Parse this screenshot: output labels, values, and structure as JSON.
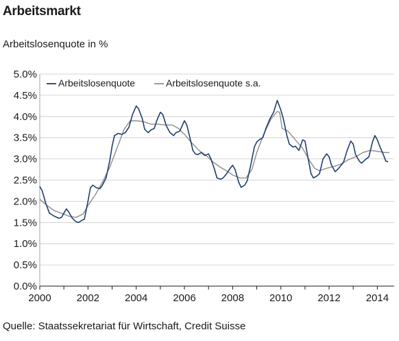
{
  "header": {
    "title": "Arbeitsmarkt",
    "subtitle": "Arbeitslosenquote in %"
  },
  "footer": {
    "source": "Quelle: Staatssekretariat für Wirtschaft, Credit Suisse"
  },
  "chart_data": {
    "type": "line",
    "title": "Arbeitsmarkt",
    "ylabel": "Arbeitslosenquote in %",
    "xlim": [
      2000,
      2014.7
    ],
    "ylim": [
      0,
      5
    ],
    "grid": true,
    "legend_position": "top-left",
    "yticks": [
      "0.0%",
      "0.5%",
      "1.0%",
      "1.5%",
      "2.0%",
      "2.5%",
      "3.0%",
      "3.5%",
      "4.0%",
      "4.5%",
      "5.0%"
    ],
    "xticks": [
      "2000",
      "2002",
      "2004",
      "2006",
      "2008",
      "2010",
      "2012",
      "2014"
    ],
    "series": [
      {
        "name": "Arbeitslosenquote",
        "color": "#1f3d6e",
        "points": [
          [
            2000.0,
            2.35
          ],
          [
            2000.1,
            2.25
          ],
          [
            2000.25,
            1.95
          ],
          [
            2000.4,
            1.72
          ],
          [
            2000.6,
            1.65
          ],
          [
            2000.8,
            1.6
          ],
          [
            2000.9,
            1.62
          ],
          [
            2001.0,
            1.72
          ],
          [
            2001.1,
            1.82
          ],
          [
            2001.2,
            1.75
          ],
          [
            2001.35,
            1.6
          ],
          [
            2001.5,
            1.52
          ],
          [
            2001.6,
            1.5
          ],
          [
            2001.75,
            1.55
          ],
          [
            2001.85,
            1.58
          ],
          [
            2002.0,
            2.0
          ],
          [
            2002.1,
            2.32
          ],
          [
            2002.2,
            2.38
          ],
          [
            2002.35,
            2.32
          ],
          [
            2002.5,
            2.3
          ],
          [
            2002.6,
            2.38
          ],
          [
            2002.75,
            2.55
          ],
          [
            2002.9,
            2.95
          ],
          [
            2003.0,
            3.3
          ],
          [
            2003.1,
            3.55
          ],
          [
            2003.25,
            3.6
          ],
          [
            2003.4,
            3.58
          ],
          [
            2003.55,
            3.62
          ],
          [
            2003.7,
            3.75
          ],
          [
            2003.85,
            4.05
          ],
          [
            2004.0,
            4.25
          ],
          [
            2004.1,
            4.18
          ],
          [
            2004.25,
            3.95
          ],
          [
            2004.35,
            3.7
          ],
          [
            2004.5,
            3.62
          ],
          [
            2004.6,
            3.68
          ],
          [
            2004.75,
            3.72
          ],
          [
            2004.85,
            3.9
          ],
          [
            2005.0,
            4.1
          ],
          [
            2005.1,
            4.05
          ],
          [
            2005.25,
            3.78
          ],
          [
            2005.4,
            3.62
          ],
          [
            2005.55,
            3.55
          ],
          [
            2005.65,
            3.62
          ],
          [
            2005.8,
            3.65
          ],
          [
            2006.0,
            3.9
          ],
          [
            2006.1,
            3.8
          ],
          [
            2006.25,
            3.45
          ],
          [
            2006.35,
            3.2
          ],
          [
            2006.45,
            3.12
          ],
          [
            2006.55,
            3.1
          ],
          [
            2006.7,
            3.15
          ],
          [
            2006.85,
            3.08
          ],
          [
            2007.0,
            3.12
          ],
          [
            2007.1,
            3.0
          ],
          [
            2007.25,
            2.75
          ],
          [
            2007.35,
            2.55
          ],
          [
            2007.5,
            2.52
          ],
          [
            2007.6,
            2.55
          ],
          [
            2007.75,
            2.65
          ],
          [
            2007.9,
            2.78
          ],
          [
            2008.0,
            2.85
          ],
          [
            2008.1,
            2.75
          ],
          [
            2008.25,
            2.45
          ],
          [
            2008.35,
            2.33
          ],
          [
            2008.5,
            2.38
          ],
          [
            2008.6,
            2.48
          ],
          [
            2008.75,
            2.85
          ],
          [
            2008.9,
            3.28
          ],
          [
            2009.0,
            3.4
          ],
          [
            2009.1,
            3.45
          ],
          [
            2009.25,
            3.5
          ],
          [
            2009.4,
            3.75
          ],
          [
            2009.55,
            3.95
          ],
          [
            2009.7,
            4.1
          ],
          [
            2009.85,
            4.38
          ],
          [
            2010.0,
            4.15
          ],
          [
            2010.1,
            3.95
          ],
          [
            2010.25,
            3.55
          ],
          [
            2010.35,
            3.35
          ],
          [
            2010.5,
            3.28
          ],
          [
            2010.6,
            3.3
          ],
          [
            2010.75,
            3.2
          ],
          [
            2010.9,
            3.45
          ],
          [
            2011.0,
            3.42
          ],
          [
            2011.1,
            3.1
          ],
          [
            2011.25,
            2.65
          ],
          [
            2011.35,
            2.55
          ],
          [
            2011.5,
            2.6
          ],
          [
            2011.6,
            2.65
          ],
          [
            2011.75,
            3.0
          ],
          [
            2011.9,
            3.12
          ],
          [
            2012.0,
            3.05
          ],
          [
            2012.1,
            2.85
          ],
          [
            2012.25,
            2.7
          ],
          [
            2012.35,
            2.75
          ],
          [
            2012.5,
            2.85
          ],
          [
            2012.6,
            2.92
          ],
          [
            2012.75,
            3.2
          ],
          [
            2012.9,
            3.42
          ],
          [
            2013.0,
            3.35
          ],
          [
            2013.1,
            3.1
          ],
          [
            2013.25,
            2.95
          ],
          [
            2013.35,
            2.9
          ],
          [
            2013.5,
            2.98
          ],
          [
            2013.65,
            3.05
          ],
          [
            2013.8,
            3.4
          ],
          [
            2013.9,
            3.55
          ],
          [
            2014.0,
            3.45
          ],
          [
            2014.1,
            3.3
          ],
          [
            2014.25,
            3.1
          ],
          [
            2014.35,
            2.95
          ],
          [
            2014.45,
            2.93
          ]
        ]
      },
      {
        "name": "Arbeitslosenquote s.a.",
        "color": "#8c8c8c",
        "points": [
          [
            2000.0,
            2.05
          ],
          [
            2000.3,
            1.9
          ],
          [
            2000.6,
            1.78
          ],
          [
            2000.9,
            1.72
          ],
          [
            2001.2,
            1.65
          ],
          [
            2001.5,
            1.62
          ],
          [
            2001.8,
            1.7
          ],
          [
            2002.0,
            1.9
          ],
          [
            2002.3,
            2.15
          ],
          [
            2002.6,
            2.45
          ],
          [
            2002.9,
            2.8
          ],
          [
            2003.2,
            3.25
          ],
          [
            2003.5,
            3.7
          ],
          [
            2003.75,
            3.9
          ],
          [
            2004.0,
            3.9
          ],
          [
            2004.3,
            3.88
          ],
          [
            2004.6,
            3.82
          ],
          [
            2004.9,
            3.82
          ],
          [
            2005.2,
            3.8
          ],
          [
            2005.5,
            3.8
          ],
          [
            2005.75,
            3.72
          ],
          [
            2006.0,
            3.58
          ],
          [
            2006.3,
            3.38
          ],
          [
            2006.6,
            3.2
          ],
          [
            2006.9,
            3.08
          ],
          [
            2007.2,
            2.92
          ],
          [
            2007.5,
            2.8
          ],
          [
            2007.8,
            2.7
          ],
          [
            2008.0,
            2.62
          ],
          [
            2008.3,
            2.55
          ],
          [
            2008.55,
            2.55
          ],
          [
            2008.8,
            2.75
          ],
          [
            2009.0,
            3.15
          ],
          [
            2009.3,
            3.6
          ],
          [
            2009.6,
            3.95
          ],
          [
            2009.85,
            4.12
          ],
          [
            2009.95,
            4.1
          ],
          [
            2010.05,
            3.72
          ],
          [
            2010.3,
            3.65
          ],
          [
            2010.6,
            3.45
          ],
          [
            2010.9,
            3.25
          ],
          [
            2011.2,
            2.95
          ],
          [
            2011.4,
            2.78
          ],
          [
            2011.6,
            2.72
          ],
          [
            2011.9,
            2.78
          ],
          [
            2012.2,
            2.82
          ],
          [
            2012.5,
            2.88
          ],
          [
            2012.8,
            2.98
          ],
          [
            2013.1,
            3.05
          ],
          [
            2013.4,
            3.15
          ],
          [
            2013.7,
            3.2
          ],
          [
            2014.0,
            3.18
          ],
          [
            2014.3,
            3.15
          ],
          [
            2014.5,
            3.15
          ]
        ]
      }
    ]
  }
}
